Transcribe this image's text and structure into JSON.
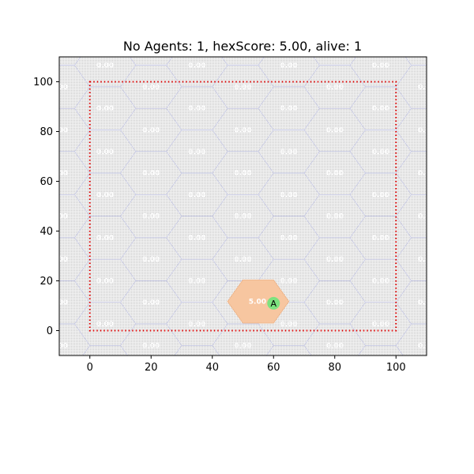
{
  "title": "No Agents: 1, hexScore: 5.00, alive: 1",
  "chart_data": {
    "type": "scatter",
    "title": "No Agents: 1, hexScore: 5.00, alive: 1",
    "xlabel": "",
    "ylabel": "",
    "xlim": [
      -10,
      110
    ],
    "ylim": [
      -10,
      110
    ],
    "xticks": [
      0,
      20,
      40,
      60,
      80,
      100
    ],
    "yticks": [
      0,
      20,
      40,
      60,
      80,
      100
    ],
    "grid": false,
    "boundary": {
      "x": [
        0,
        100
      ],
      "y": [
        0,
        100
      ],
      "color": "#e00000",
      "style": "dotted"
    },
    "hex_grid": {
      "radius": 10,
      "x0": 5,
      "y0": 2.7,
      "fill": "#d8d8d8",
      "edge": "#b9bde6",
      "label": "0.00"
    },
    "highlight_hex": {
      "x": 55,
      "y": 11.7,
      "score": "5.00",
      "fill": "#f7c6a0"
    },
    "agents": [
      {
        "x": 60,
        "y": 11,
        "label": "A",
        "color": "#7de27f"
      }
    ]
  }
}
